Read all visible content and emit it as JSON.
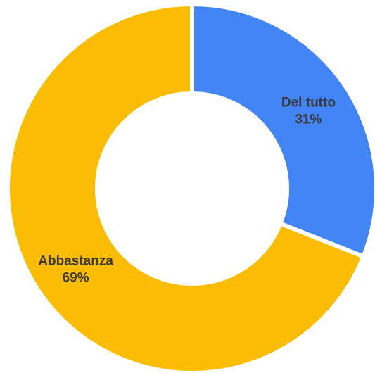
{
  "chart_data": {
    "type": "pie",
    "donut": true,
    "title": "",
    "slices": [
      {
        "label": "Del tutto",
        "value": 31,
        "value_text": "31%",
        "color": "#4285F4"
      },
      {
        "label": "Abbastanza",
        "value": 69,
        "value_text": "69%",
        "color": "#FBBC04"
      }
    ],
    "legend": "none"
  }
}
